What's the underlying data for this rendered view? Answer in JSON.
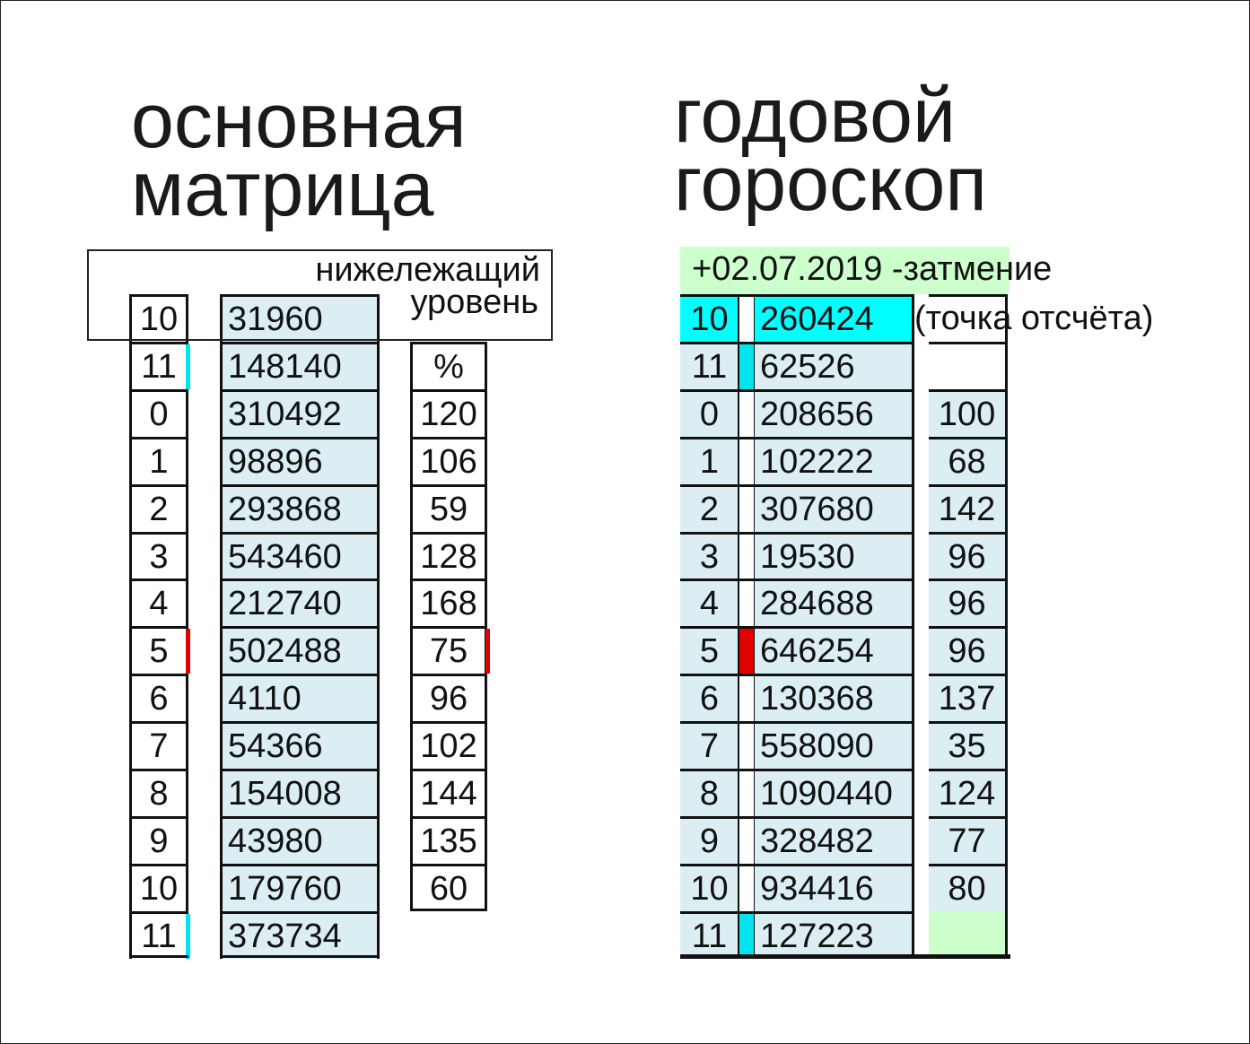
{
  "left": {
    "title_line1": "основная",
    "title_line2": "матрица",
    "note_line1": "нижележащий",
    "note_line2": "уровень",
    "percent_header": "%",
    "rows": [
      {
        "n": "10",
        "v": "31960",
        "p": null,
        "mark": null
      },
      {
        "n": "11",
        "v": "148140",
        "p": "%",
        "mark": "#00e5ee"
      },
      {
        "n": "0",
        "v": "310492",
        "p": "120",
        "mark": null
      },
      {
        "n": "1",
        "v": "98896",
        "p": "106",
        "mark": null
      },
      {
        "n": "2",
        "v": "293868",
        "p": "59",
        "mark": null
      },
      {
        "n": "3",
        "v": "543460",
        "p": "128",
        "mark": null
      },
      {
        "n": "4",
        "v": "212740",
        "p": "168",
        "mark": null
      },
      {
        "n": "5",
        "v": "502488",
        "p": "75",
        "mark": "#e00000"
      },
      {
        "n": "6",
        "v": "4110",
        "p": "96",
        "mark": null
      },
      {
        "n": "7",
        "v": "54366",
        "p": "102",
        "mark": null
      },
      {
        "n": "8",
        "v": "154008",
        "p": "144",
        "mark": null
      },
      {
        "n": "9",
        "v": "43980",
        "p": "135",
        "mark": null
      },
      {
        "n": "10",
        "v": "179760",
        "p": "60",
        "mark": null
      },
      {
        "n": "11",
        "v": "373734",
        "p": null,
        "mark": "#00e5ee"
      }
    ]
  },
  "right": {
    "title_line1": "годовой",
    "title_line2": "гороскоп",
    "header_date": "+02.07.2019 -затмение",
    "header_note": "(точка отсчёта)",
    "rows": [
      {
        "n": "10",
        "v": "260424",
        "p": "",
        "mark": null,
        "highlight": "#00ffff"
      },
      {
        "n": "11",
        "v": "62526",
        "p": "",
        "mark": "#00e5ee"
      },
      {
        "n": "0",
        "v": "208656",
        "p": "100",
        "mark": null
      },
      {
        "n": "1",
        "v": "102222",
        "p": "68",
        "mark": null
      },
      {
        "n": "2",
        "v": "307680",
        "p": "142",
        "mark": null
      },
      {
        "n": "3",
        "v": "19530",
        "p": "96",
        "mark": null
      },
      {
        "n": "4",
        "v": "284688",
        "p": "96",
        "mark": null
      },
      {
        "n": "5",
        "v": "646254",
        "p": "96",
        "mark": "#e00000"
      },
      {
        "n": "6",
        "v": "130368",
        "p": "137",
        "mark": null
      },
      {
        "n": "7",
        "v": "558090",
        "p": "35",
        "mark": null
      },
      {
        "n": "8",
        "v": "1090440",
        "p": "124",
        "mark": null
      },
      {
        "n": "9",
        "v": "328482",
        "p": "77",
        "mark": null
      },
      {
        "n": "10",
        "v": "934416",
        "p": "80",
        "mark": null
      },
      {
        "n": "11",
        "v": "127223",
        "p": "",
        "mark": "#00e5ee"
      }
    ]
  },
  "colors": {
    "value_bg": "#dbeef3",
    "header_green": "#ccffcc",
    "cyan": "#00ffff",
    "red": "#e00000"
  }
}
